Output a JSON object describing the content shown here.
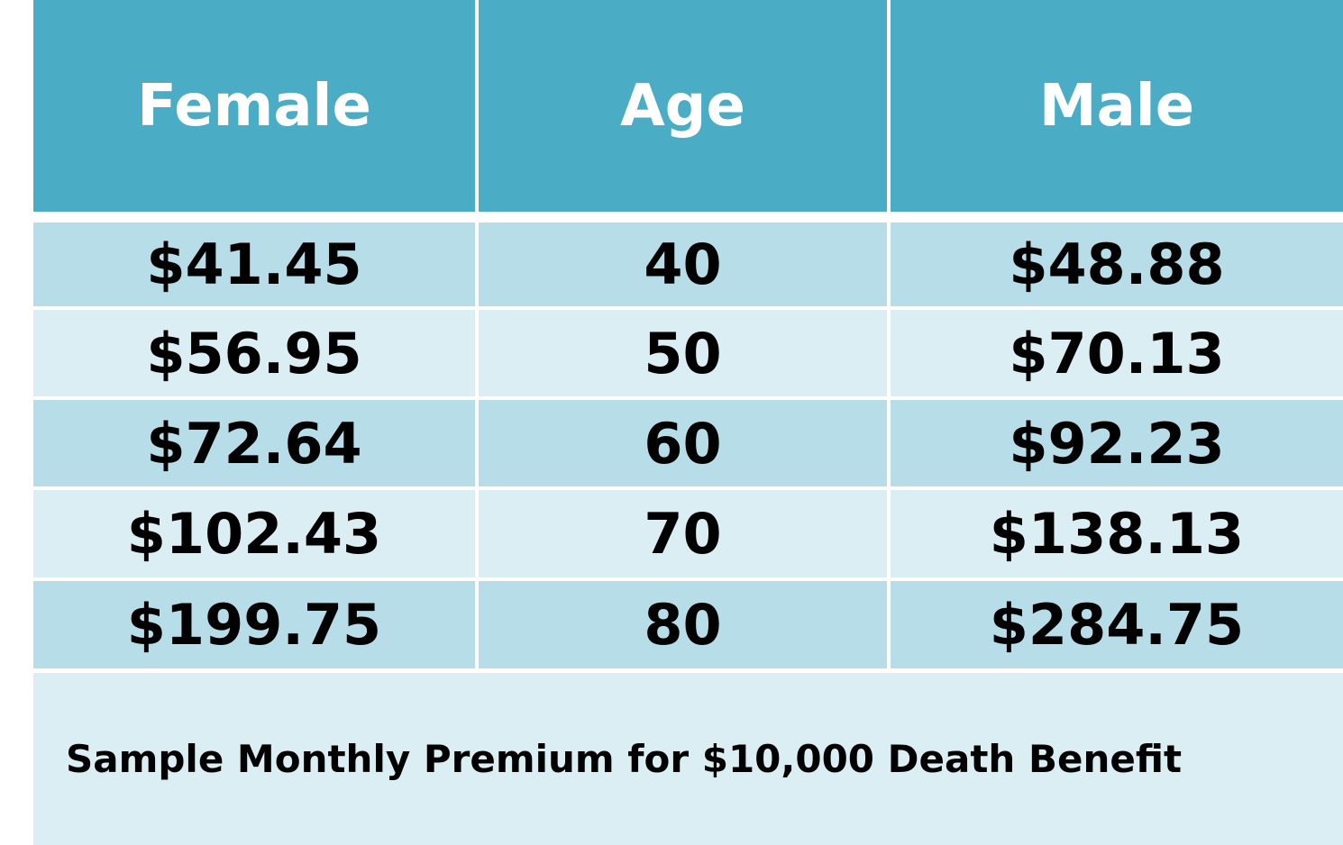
{
  "colors": {
    "header_bg": "#4bacc6",
    "row_dark": "#b7dde8",
    "row_light": "#dbeef3",
    "footer_bg": "#dbeef3",
    "header_text": "#ffffff",
    "body_text": "#000000"
  },
  "table": {
    "headers": [
      "Female",
      "Age",
      "Male"
    ],
    "rows": [
      [
        "$41.45",
        "40",
        "$48.88"
      ],
      [
        "$56.95",
        "50",
        "$70.13"
      ],
      [
        "$72.64",
        "60",
        "$92.23"
      ],
      [
        "$102.43",
        "70",
        "$138.13"
      ],
      [
        "$199.75",
        "80",
        "$284.75"
      ]
    ],
    "footnote": "Sample Monthly Premium for $10,000 Death Benefit"
  }
}
